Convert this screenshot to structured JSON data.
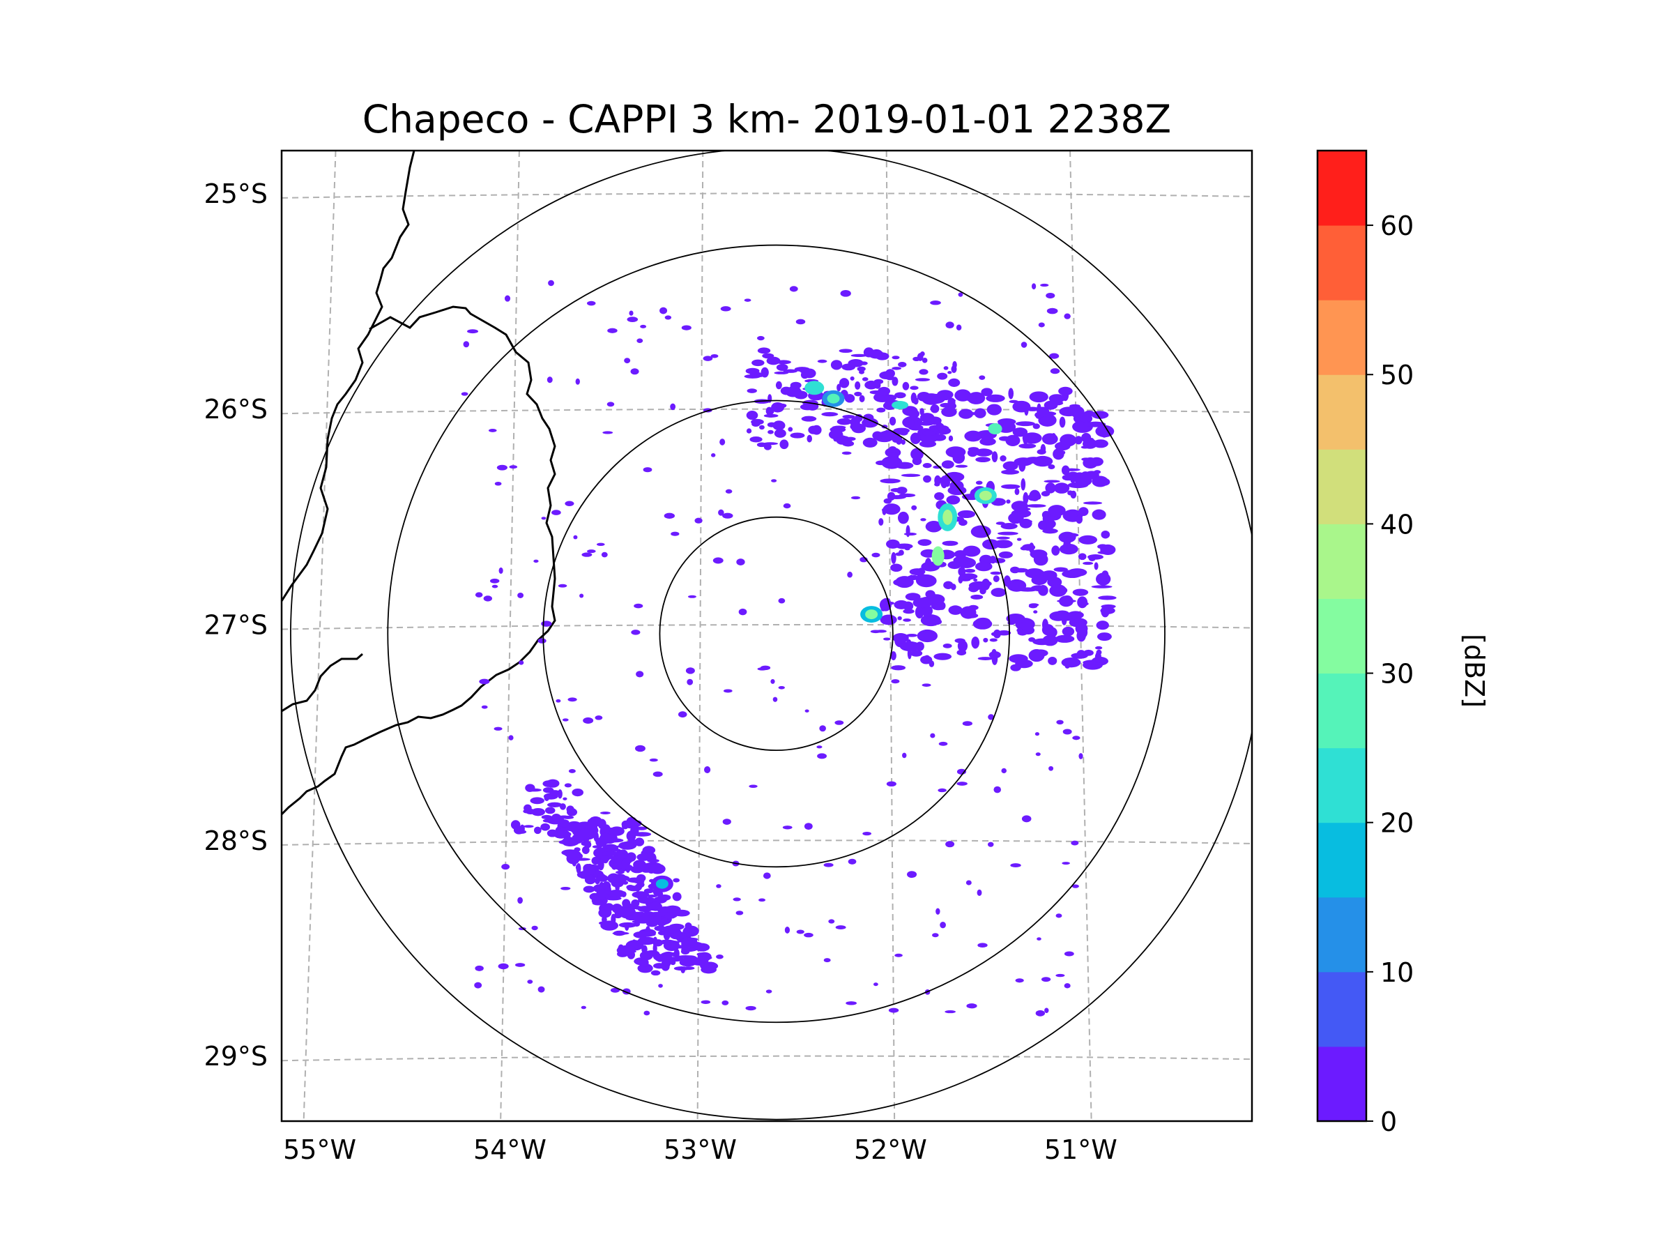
{
  "chart_data": {
    "type": "heatmap",
    "title": "Chapeco - CAPPI 3 km- 2019-01-01 2238Z",
    "xlabel": "",
    "ylabel": "",
    "radar_center": {
      "lon": -52.6,
      "lat": -27.04
    },
    "range_rings_km": [
      60,
      120,
      200,
      250
    ],
    "x_ticks": [
      {
        "value": -55,
        "label": "55°W"
      },
      {
        "value": -54,
        "label": "54°W"
      },
      {
        "value": -53,
        "label": "53°W"
      },
      {
        "value": -52,
        "label": "52°W"
      },
      {
        "value": -51,
        "label": "51°W"
      }
    ],
    "y_ticks": [
      {
        "value": -25,
        "label": "25°S"
      },
      {
        "value": -26,
        "label": "26°S"
      },
      {
        "value": -27,
        "label": "27°S"
      },
      {
        "value": -28,
        "label": "28°S"
      },
      {
        "value": -29,
        "label": "29°S"
      }
    ],
    "xlim": [
      -55.2,
      -50.1
    ],
    "ylim": [
      -29.3,
      -24.8
    ],
    "gridlines": true,
    "colorbar": {
      "label": "[dBZ]",
      "min": 0,
      "max": 65,
      "ticks": [
        0,
        10,
        20,
        30,
        40,
        50,
        60
      ],
      "levels": [
        0,
        5,
        10,
        15,
        20,
        25,
        30,
        35,
        40,
        45,
        50,
        55,
        60,
        65
      ],
      "colors": [
        "#6c1bff",
        "#4459f5",
        "#2590e8",
        "#08bde0",
        "#2fe0d4",
        "#55f3b9",
        "#84fca0",
        "#a9f68b",
        "#d1df7b",
        "#f3c06c",
        "#ff9552",
        "#ff5f37",
        "#ff1f1b"
      ]
    },
    "echoes": [
      {
        "region": "northeast cluster near 51.5°W 26.3°S",
        "lon": -51.5,
        "lat": -26.4,
        "max_dbz": 35
      },
      {
        "region": "cell near radar east",
        "lon": -52.1,
        "lat": -26.95,
        "max_dbz": 30
      },
      {
        "region": "band southwest",
        "lon": -53.2,
        "lat": -28.2,
        "max_dbz": 15
      },
      {
        "region": "north cluster",
        "lon": -52.3,
        "lat": -25.95,
        "max_dbz": 25
      }
    ]
  }
}
